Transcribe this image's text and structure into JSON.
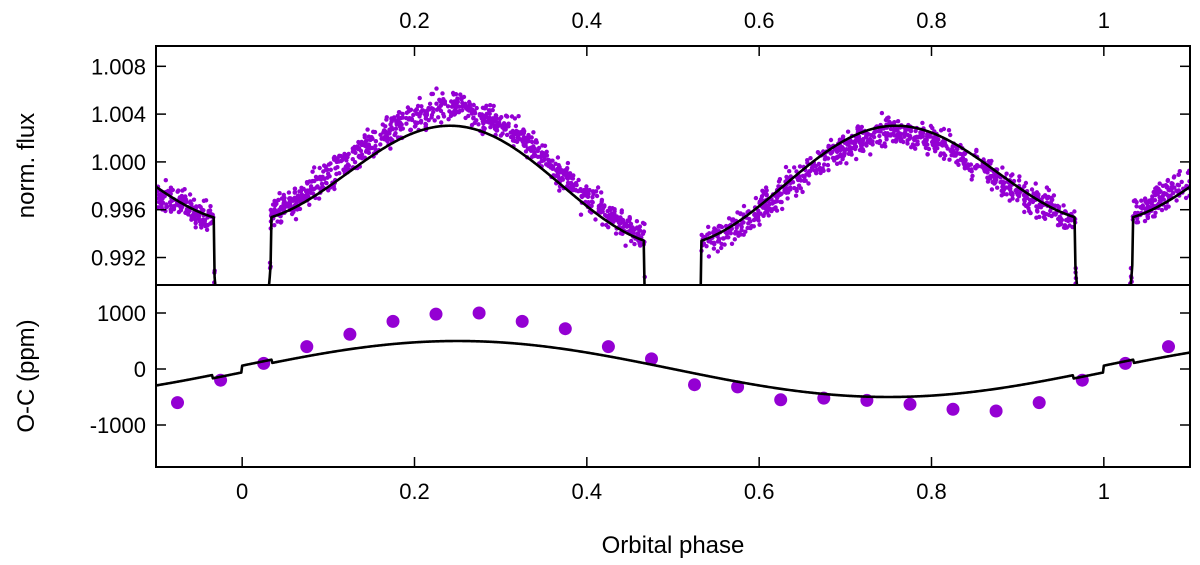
{
  "chart_data": [
    {
      "type": "scatter",
      "name": "light-curve",
      "ylabel": "norm. flux",
      "xlim": [
        -0.1,
        1.1
      ],
      "ylim": [
        0.9897,
        1.0097
      ],
      "yticks": [
        0.992,
        0.996,
        1.0,
        1.004,
        1.008
      ],
      "ytick_labels": [
        "0.992",
        "0.996",
        "1.000",
        "1.004",
        "1.008"
      ],
      "top_xticks": [
        0.2,
        0.4,
        0.6,
        0.8,
        1.0
      ],
      "top_xtick_labels": [
        "0.2",
        "0.4",
        "0.6",
        "0.8",
        "1"
      ],
      "point_color": "#9400d3",
      "model_color": "#000000",
      "series": [
        {
          "name": "observed flux",
          "kind": "points",
          "noise": 0.0009,
          "offset_bright": 0.0014,
          "offset_dim": -0.0006
        },
        {
          "name": "model",
          "kind": "line"
        }
      ],
      "model": {
        "mean": 0.9985,
        "amp1": 0.0045,
        "phi1": 0.25,
        "amp2": 0.001,
        "phi2": 0.5,
        "primary_depth": 0.0045,
        "secondary_depth": 0.003,
        "eclipse_halfwidth": 0.033
      },
      "grid": false
    },
    {
      "type": "scatter",
      "name": "residuals",
      "xlabel": "Orbital phase",
      "ylabel": "O-C (ppm)",
      "xlim": [
        -0.1,
        1.1
      ],
      "ylim": [
        -1750,
        1500
      ],
      "xticks": [
        0,
        0.2,
        0.4,
        0.6,
        0.8,
        1.0
      ],
      "xtick_labels": [
        "0",
        "0.2",
        "0.4",
        "0.6",
        "0.8",
        "1"
      ],
      "yticks": [
        -1000,
        0,
        1000
      ],
      "ytick_labels": [
        "-1000",
        "0",
        "1000"
      ],
      "point_color": "#9400d3",
      "x": [
        -0.075,
        -0.025,
        0.025,
        0.075,
        0.125,
        0.175,
        0.225,
        0.275,
        0.325,
        0.375,
        0.425,
        0.475,
        0.525,
        0.575,
        0.625,
        0.675,
        0.725,
        0.775,
        0.825,
        0.875,
        0.925,
        0.975,
        1.025,
        1.075
      ],
      "y": [
        -600,
        -200,
        100,
        400,
        620,
        850,
        980,
        1000,
        850,
        720,
        400,
        180,
        -280,
        -320,
        -550,
        -520,
        -560,
        -630,
        -720,
        -750,
        -600,
        -200,
        100,
        400
      ],
      "model": {
        "amp": 500,
        "phase": 0.25
      },
      "grid": false
    }
  ]
}
